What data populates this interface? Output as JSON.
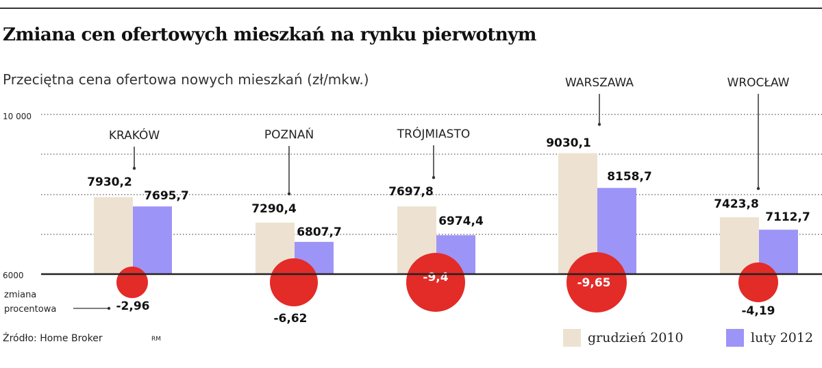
{
  "title": "Zmiana cen ofertowych mieszkań na rynku pierwotnym",
  "subtitle": "Przeciętna cena ofertowa nowych mieszkań (zł/mkw.)",
  "source": "Źródło: Home Broker",
  "initials": "RM",
  "change_label_line1": "zmiana",
  "change_label_line2": "procentowa",
  "colors": {
    "dec2010": "#ede2d1",
    "feb2012": "#9d94f7",
    "circle": "#e32b28",
    "baseline": "#222222",
    "grid": "#555555"
  },
  "chart_data": {
    "type": "bar",
    "categories": [
      "KRAKÓW",
      "POZNAŃ",
      "TRÓJMIASTO",
      "WARSZAWA",
      "WROCŁAW"
    ],
    "series": [
      {
        "name": "grudzień 2010",
        "values": [
          7930.2,
          7290.4,
          7697.8,
          9030.1,
          7423.8
        ],
        "labels": [
          "7930,2",
          "7290,4",
          "7697,8",
          "9030,1",
          "7423,8"
        ]
      },
      {
        "name": "luty 2012",
        "values": [
          7695.7,
          6807.7,
          6974.4,
          8158.7,
          7112.7
        ],
        "labels": [
          "7695,7",
          "6807,7",
          "6974,4",
          "8158,7",
          "7112,7"
        ]
      }
    ],
    "percent_change": [
      -2.96,
      -6.62,
      -9.4,
      -9.65,
      -4.19
    ],
    "percent_change_labels": [
      "-2,96",
      "-6,62",
      "-9,4",
      "-9,65",
      "-4,19"
    ],
    "ylim": [
      6000,
      10000
    ],
    "yticks": [
      6000,
      10000
    ],
    "ytick_labels": [
      "6000",
      "10 000"
    ],
    "grid": true,
    "legend_position": "bottom-right"
  }
}
